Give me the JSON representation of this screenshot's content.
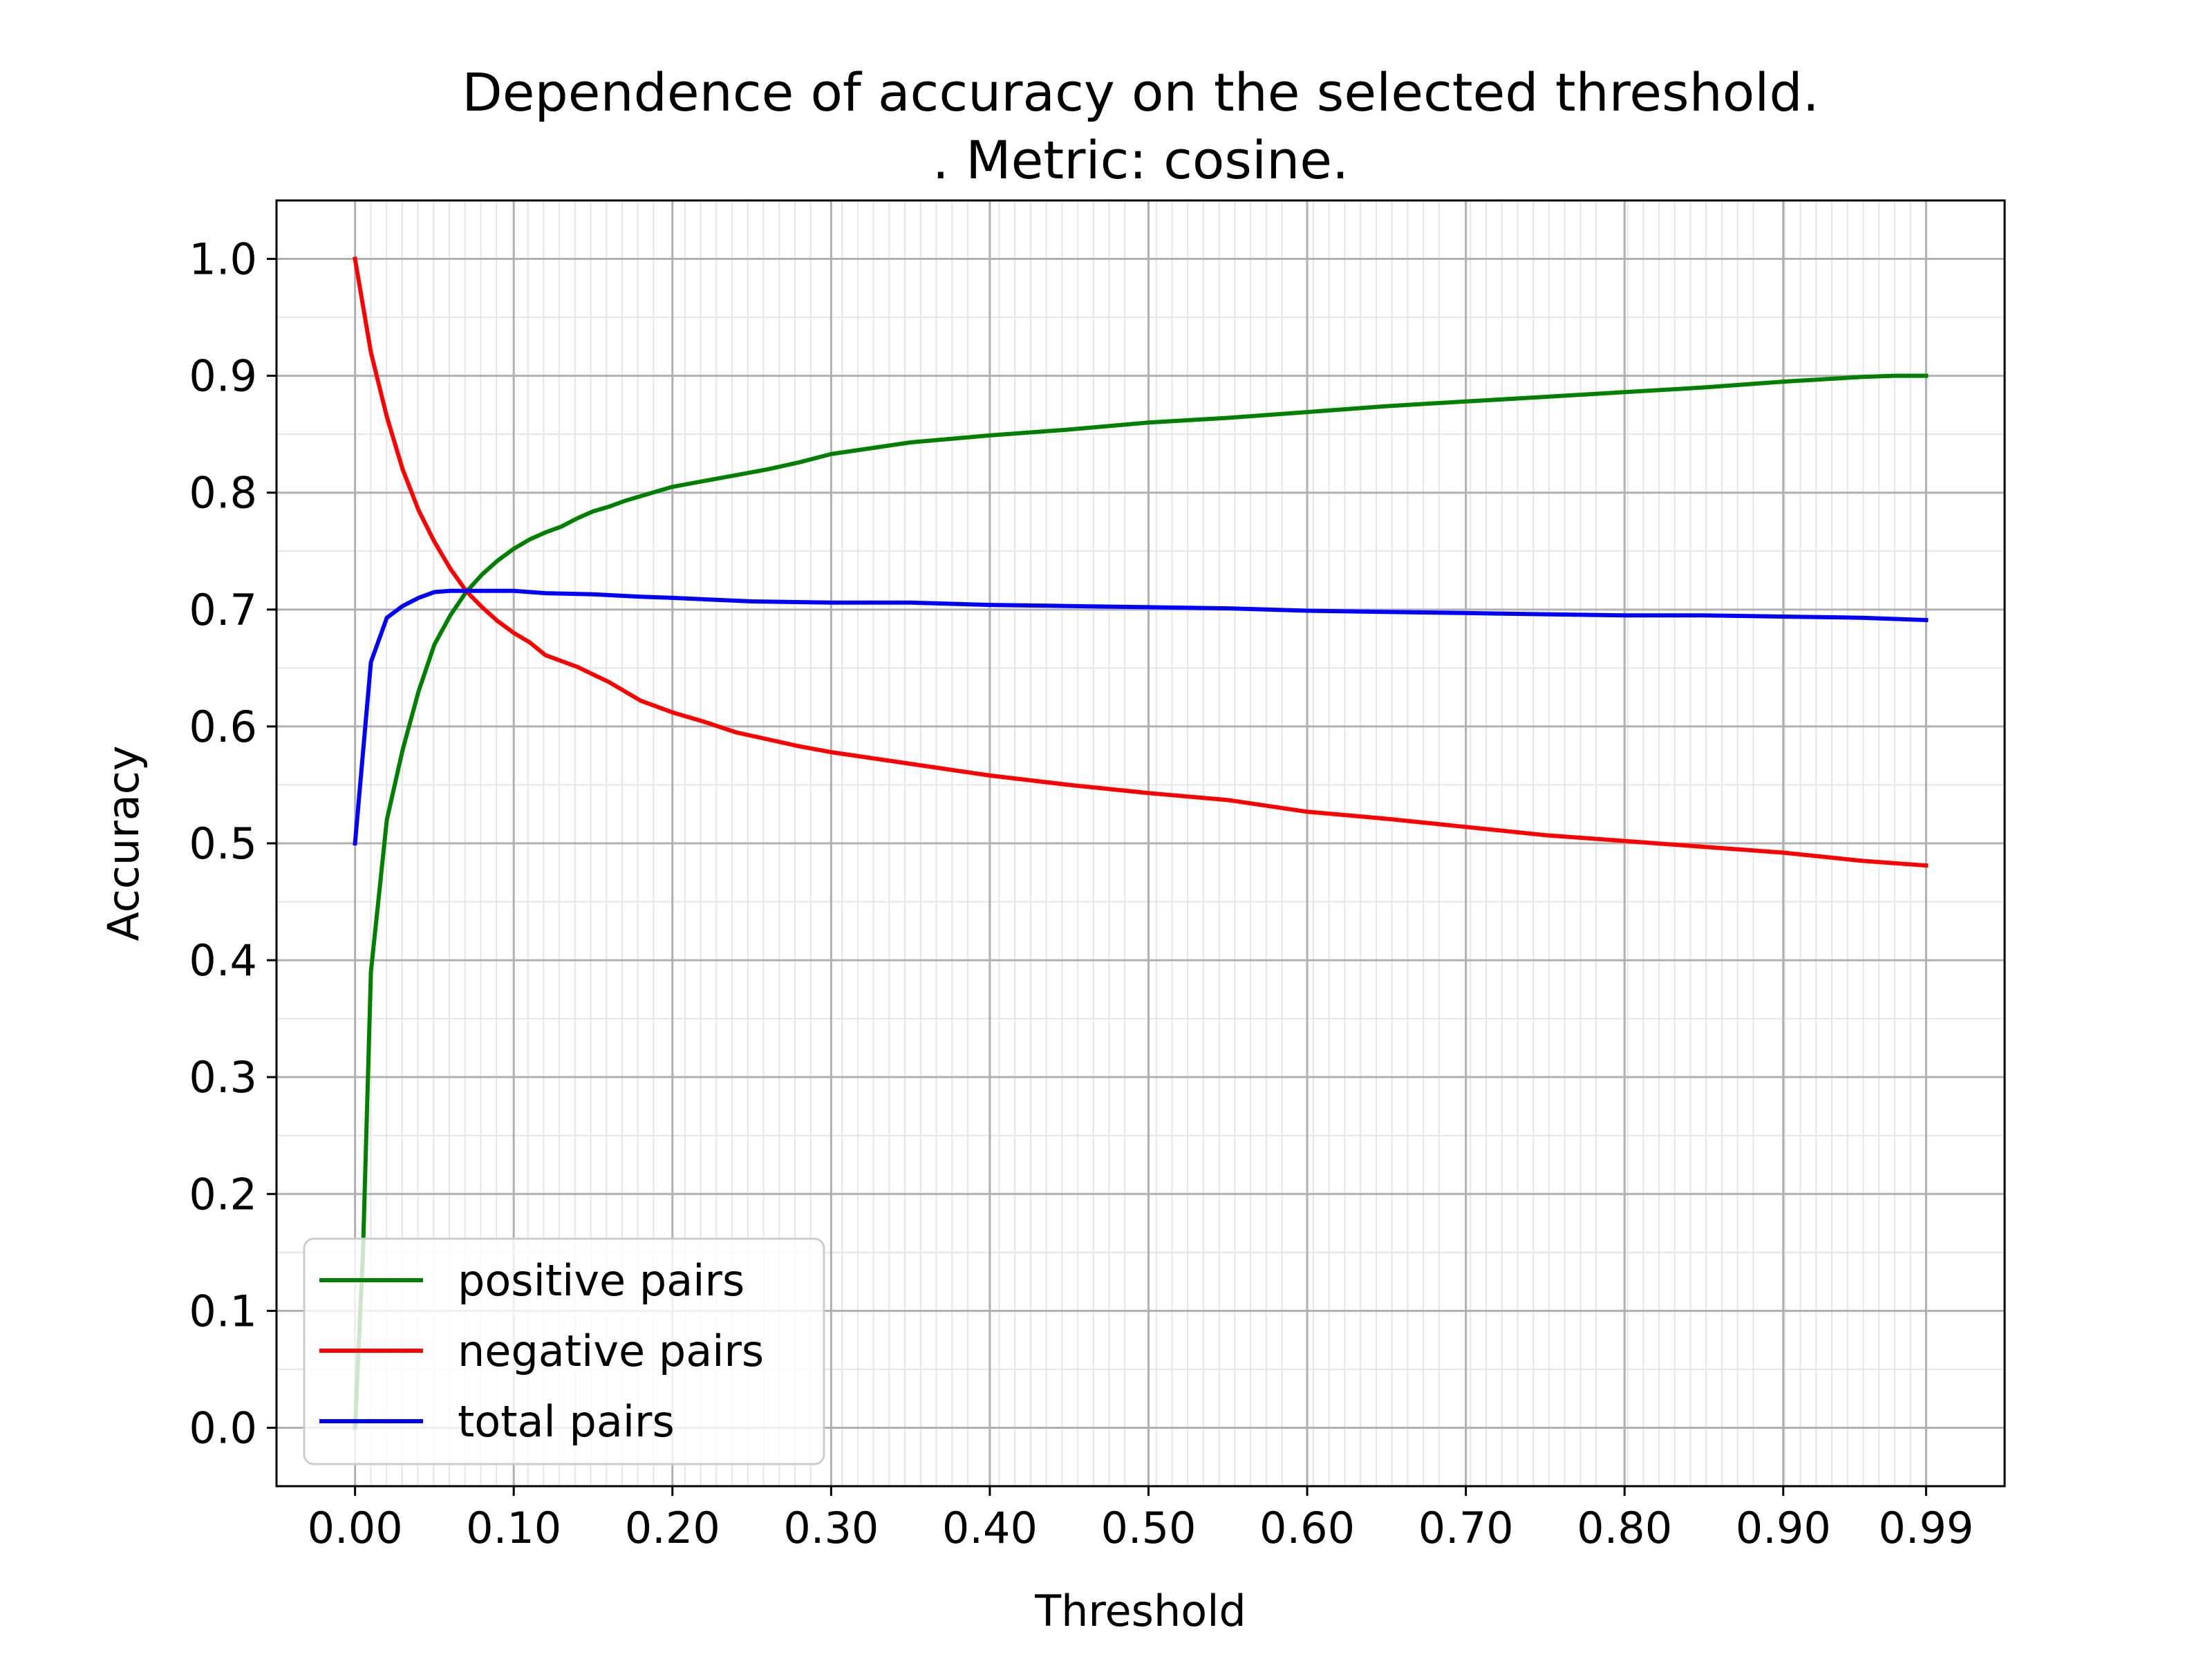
{
  "chart_data": {
    "type": "line",
    "title_lines": [
      "Dependence of accuracy on the selected threshold.",
      ". Metric: cosine."
    ],
    "xlabel": "Threshold",
    "ylabel": "Accuracy",
    "xlim": [
      -0.0495,
      1.0395
    ],
    "ylim": [
      -0.05,
      1.05
    ],
    "grid": true,
    "minor_grid": true,
    "legend_position": "lower-left",
    "x_ticks": [
      0.0,
      0.1,
      0.2,
      0.3,
      0.4,
      0.5,
      0.6,
      0.7,
      0.8,
      0.9,
      0.99
    ],
    "x_tick_labels": [
      "0.00",
      "0.10",
      "0.20",
      "0.30",
      "0.40",
      "0.50",
      "0.60",
      "0.70",
      "0.80",
      "0.90",
      "0.99"
    ],
    "y_ticks": [
      0.0,
      0.1,
      0.2,
      0.3,
      0.4,
      0.5,
      0.6,
      0.7,
      0.8,
      0.9,
      1.0
    ],
    "y_tick_labels": [
      "0.0",
      "0.1",
      "0.2",
      "0.3",
      "0.4",
      "0.5",
      "0.6",
      "0.7",
      "0.8",
      "0.9",
      "1.0"
    ],
    "series": [
      {
        "name": "positive pairs",
        "color": "#008000",
        "points": [
          [
            0.0,
            0.0
          ],
          [
            0.005,
            0.15
          ],
          [
            0.01,
            0.39
          ],
          [
            0.02,
            0.52
          ],
          [
            0.03,
            0.58
          ],
          [
            0.04,
            0.63
          ],
          [
            0.05,
            0.67
          ],
          [
            0.06,
            0.695
          ],
          [
            0.07,
            0.715
          ],
          [
            0.08,
            0.73
          ],
          [
            0.09,
            0.742
          ],
          [
            0.1,
            0.752
          ],
          [
            0.11,
            0.76
          ],
          [
            0.12,
            0.766
          ],
          [
            0.13,
            0.771
          ],
          [
            0.14,
            0.778
          ],
          [
            0.15,
            0.784
          ],
          [
            0.16,
            0.788
          ],
          [
            0.17,
            0.793
          ],
          [
            0.18,
            0.797
          ],
          [
            0.19,
            0.801
          ],
          [
            0.2,
            0.805
          ],
          [
            0.22,
            0.81
          ],
          [
            0.24,
            0.815
          ],
          [
            0.26,
            0.82
          ],
          [
            0.28,
            0.826
          ],
          [
            0.3,
            0.833
          ],
          [
            0.35,
            0.843
          ],
          [
            0.4,
            0.849
          ],
          [
            0.45,
            0.854
          ],
          [
            0.5,
            0.86
          ],
          [
            0.55,
            0.864
          ],
          [
            0.6,
            0.869
          ],
          [
            0.65,
            0.874
          ],
          [
            0.7,
            0.878
          ],
          [
            0.75,
            0.882
          ],
          [
            0.8,
            0.886
          ],
          [
            0.85,
            0.89
          ],
          [
            0.9,
            0.895
          ],
          [
            0.95,
            0.899
          ],
          [
            0.97,
            0.9
          ],
          [
            0.99,
            0.9
          ]
        ]
      },
      {
        "name": "negative pairs",
        "color": "#ff0000",
        "points": [
          [
            0.0,
            1.0
          ],
          [
            0.01,
            0.92
          ],
          [
            0.02,
            0.865
          ],
          [
            0.03,
            0.82
          ],
          [
            0.04,
            0.785
          ],
          [
            0.05,
            0.758
          ],
          [
            0.06,
            0.735
          ],
          [
            0.07,
            0.716
          ],
          [
            0.08,
            0.702
          ],
          [
            0.09,
            0.69
          ],
          [
            0.1,
            0.68
          ],
          [
            0.11,
            0.672
          ],
          [
            0.12,
            0.661
          ],
          [
            0.14,
            0.651
          ],
          [
            0.16,
            0.638
          ],
          [
            0.18,
            0.622
          ],
          [
            0.2,
            0.612
          ],
          [
            0.22,
            0.604
          ],
          [
            0.24,
            0.595
          ],
          [
            0.26,
            0.589
          ],
          [
            0.28,
            0.583
          ],
          [
            0.3,
            0.578
          ],
          [
            0.35,
            0.568
          ],
          [
            0.4,
            0.558
          ],
          [
            0.45,
            0.55
          ],
          [
            0.5,
            0.543
          ],
          [
            0.55,
            0.537
          ],
          [
            0.6,
            0.527
          ],
          [
            0.65,
            0.521
          ],
          [
            0.7,
            0.514
          ],
          [
            0.75,
            0.507
          ],
          [
            0.8,
            0.502
          ],
          [
            0.85,
            0.497
          ],
          [
            0.9,
            0.492
          ],
          [
            0.95,
            0.485
          ],
          [
            0.99,
            0.481
          ]
        ]
      },
      {
        "name": "total pairs",
        "color": "#0000ff",
        "points": [
          [
            0.0,
            0.5
          ],
          [
            0.01,
            0.655
          ],
          [
            0.02,
            0.693
          ],
          [
            0.03,
            0.703
          ],
          [
            0.04,
            0.71
          ],
          [
            0.05,
            0.715
          ],
          [
            0.06,
            0.716
          ],
          [
            0.08,
            0.716
          ],
          [
            0.1,
            0.716
          ],
          [
            0.12,
            0.714
          ],
          [
            0.15,
            0.713
          ],
          [
            0.18,
            0.711
          ],
          [
            0.2,
            0.71
          ],
          [
            0.25,
            0.707
          ],
          [
            0.3,
            0.706
          ],
          [
            0.35,
            0.706
          ],
          [
            0.4,
            0.704
          ],
          [
            0.45,
            0.703
          ],
          [
            0.5,
            0.702
          ],
          [
            0.55,
            0.701
          ],
          [
            0.6,
            0.699
          ],
          [
            0.65,
            0.698
          ],
          [
            0.7,
            0.697
          ],
          [
            0.75,
            0.696
          ],
          [
            0.8,
            0.695
          ],
          [
            0.85,
            0.695
          ],
          [
            0.9,
            0.694
          ],
          [
            0.95,
            0.693
          ],
          [
            0.99,
            0.691
          ]
        ]
      }
    ]
  }
}
